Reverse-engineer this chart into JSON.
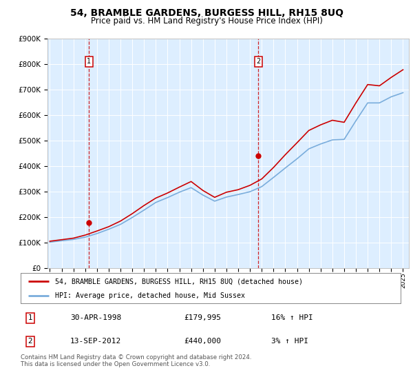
{
  "title": "54, BRAMBLE GARDENS, BURGESS HILL, RH15 8UQ",
  "subtitle": "Price paid vs. HM Land Registry's House Price Index (HPI)",
  "legend_line1": "54, BRAMBLE GARDENS, BURGESS HILL, RH15 8UQ (detached house)",
  "legend_line2": "HPI: Average price, detached house, Mid Sussex",
  "footnote": "Contains HM Land Registry data © Crown copyright and database right 2024.\nThis data is licensed under the Open Government Licence v3.0.",
  "marker1_date": "30-APR-1998",
  "marker1_price": "£179,995",
  "marker1_hpi": "16% ↑ HPI",
  "marker1_year": 1998.33,
  "marker1_value": 179995,
  "marker2_date": "13-SEP-2012",
  "marker2_price": "£440,000",
  "marker2_hpi": "3% ↑ HPI",
  "marker2_year": 2012.71,
  "marker2_value": 440000,
  "red_color": "#cc0000",
  "blue_color": "#7aaddc",
  "plot_bg": "#ddeeff",
  "ylim": [
    0,
    900000
  ],
  "xlim": [
    1994.8,
    2025.5
  ],
  "years": [
    1995,
    1996,
    1997,
    1998,
    1999,
    2000,
    2001,
    2002,
    2003,
    2004,
    2005,
    2006,
    2007,
    2008,
    2009,
    2010,
    2011,
    2012,
    2013,
    2014,
    2015,
    2016,
    2017,
    2018,
    2019,
    2020,
    2021,
    2022,
    2023,
    2024,
    2025
  ],
  "hpi_values": [
    102000,
    108000,
    113000,
    122000,
    136000,
    153000,
    172000,
    199000,
    228000,
    258000,
    277000,
    298000,
    316000,
    287000,
    263000,
    279000,
    289000,
    300000,
    320000,
    356000,
    393000,
    429000,
    468000,
    487000,
    503000,
    505000,
    578000,
    648000,
    648000,
    672000,
    688000
  ],
  "red_values": [
    106000,
    112000,
    118000,
    130000,
    146000,
    163000,
    185000,
    214000,
    246000,
    275000,
    295000,
    318000,
    340000,
    305000,
    278000,
    298000,
    308000,
    325000,
    350000,
    395000,
    445000,
    492000,
    540000,
    562000,
    580000,
    572000,
    648000,
    720000,
    715000,
    748000,
    778000
  ]
}
